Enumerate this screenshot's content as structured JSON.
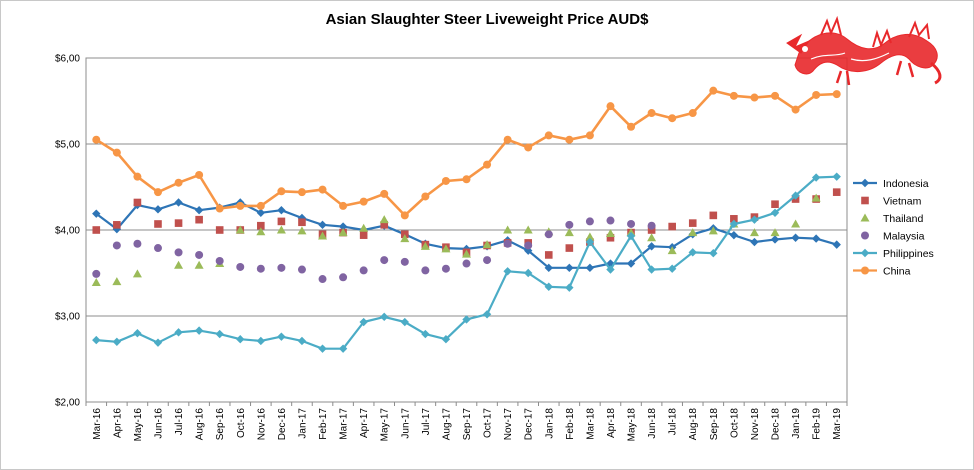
{
  "chart_data": {
    "type": "line",
    "title": "Asian Slaughter Steer Liveweight Price AUD$",
    "xlabel": "",
    "ylabel": "",
    "ylim": [
      2,
      6
    ],
    "yticks": [
      "$2,00",
      "$3,00",
      "$4,00",
      "$5,00",
      "$6,00"
    ],
    "grid": "horizontal",
    "legend_position": "right",
    "categories": [
      "Mar-16",
      "Apr-16",
      "May-16",
      "Jun-16",
      "Jul-16",
      "Aug-16",
      "Sep-16",
      "Oct-16",
      "Nov-16",
      "Dec-16",
      "Jan-17",
      "Feb-17",
      "Mar-17",
      "Apr-17",
      "May-17",
      "Jun-17",
      "Jul-17",
      "Aug-17",
      "Sep-17",
      "Oct-17",
      "Nov-17",
      "Dec-17",
      "Jan-18",
      "Feb-18",
      "Mar-18",
      "Apr-18",
      "May-18",
      "Jun-18",
      "Jul-18",
      "Aug-18",
      "Sep-18",
      "Oct-18",
      "Nov-18",
      "Dec-18",
      "Jan-19",
      "Feb-19",
      "Mar-19"
    ],
    "series": [
      {
        "name": "Indonesia",
        "style": "line",
        "marker": "diamond",
        "color": "#2e75b6",
        "values": [
          4.19,
          4.01,
          4.29,
          4.24,
          4.32,
          4.23,
          4.26,
          4.32,
          4.2,
          4.23,
          4.14,
          4.06,
          4.04,
          4.0,
          4.05,
          3.95,
          3.84,
          3.79,
          3.78,
          3.81,
          3.88,
          3.76,
          3.56,
          3.56,
          3.56,
          3.61,
          3.61,
          3.81,
          3.8,
          3.95,
          4.02,
          3.94,
          3.86,
          3.89,
          3.91,
          3.9,
          3.83
        ]
      },
      {
        "name": "Vietnam",
        "style": "markers",
        "marker": "square",
        "color": "#c0504d",
        "values": [
          4.0,
          4.06,
          4.32,
          4.07,
          4.08,
          4.12,
          4.0,
          4.0,
          4.05,
          4.1,
          4.09,
          3.95,
          3.97,
          3.94,
          4.06,
          3.95,
          3.83,
          3.8,
          3.74,
          3.82,
          3.85,
          3.85,
          3.71,
          3.79,
          3.86,
          3.91,
          3.97,
          4.0,
          4.04,
          4.08,
          4.17,
          4.13,
          4.15,
          4.3,
          4.36,
          4.36,
          4.44
        ]
      },
      {
        "name": "Thailand",
        "style": "markers",
        "marker": "triangle",
        "color": "#9bbb59",
        "values": [
          3.39,
          3.4,
          3.49,
          null,
          3.59,
          3.59,
          3.61,
          4.0,
          3.98,
          4.0,
          3.99,
          3.93,
          3.97,
          4.02,
          4.12,
          3.9,
          3.81,
          3.78,
          3.72,
          3.83,
          4.0,
          4.0,
          3.98,
          3.97,
          3.92,
          3.96,
          3.97,
          3.91,
          3.76,
          3.97,
          3.99,
          4.07,
          3.97,
          3.97,
          4.07,
          4.37,
          null
        ]
      },
      {
        "name": "Malaysia",
        "style": "markers",
        "marker": "circle",
        "color": "#8064a2",
        "values": [
          3.49,
          3.82,
          3.84,
          3.79,
          3.74,
          3.71,
          3.64,
          3.57,
          3.55,
          3.56,
          3.54,
          3.43,
          3.45,
          3.53,
          3.65,
          3.63,
          3.53,
          3.55,
          3.61,
          3.65,
          3.84,
          3.82,
          3.95,
          4.06,
          4.1,
          4.11,
          4.07,
          4.05,
          null,
          null,
          null,
          null,
          null,
          null,
          null,
          null,
          null
        ]
      },
      {
        "name": "Philippines",
        "style": "line",
        "marker": "diamond",
        "color": "#4bacc6",
        "values": [
          2.72,
          2.7,
          2.8,
          2.69,
          2.81,
          2.83,
          2.79,
          2.73,
          2.71,
          2.76,
          2.71,
          2.62,
          2.62,
          2.93,
          2.99,
          2.93,
          2.79,
          2.73,
          2.96,
          3.02,
          3.52,
          3.5,
          3.34,
          3.33,
          3.86,
          3.54,
          3.93,
          3.54,
          3.55,
          3.74,
          3.73,
          4.07,
          4.12,
          4.2,
          4.4,
          4.61,
          4.62
        ]
      },
      {
        "name": "China",
        "style": "line",
        "marker": "circle",
        "color": "#f79646",
        "values": [
          5.05,
          4.9,
          4.62,
          4.44,
          4.55,
          4.64,
          4.25,
          4.28,
          4.28,
          4.45,
          4.44,
          4.47,
          4.28,
          4.33,
          4.42,
          4.17,
          4.39,
          4.57,
          4.59,
          4.76,
          5.05,
          4.96,
          5.1,
          5.05,
          5.1,
          5.44,
          5.2,
          5.36,
          5.3,
          5.36,
          5.62,
          5.56,
          5.54,
          5.56,
          5.4,
          5.57,
          5.58
        ]
      }
    ]
  }
}
